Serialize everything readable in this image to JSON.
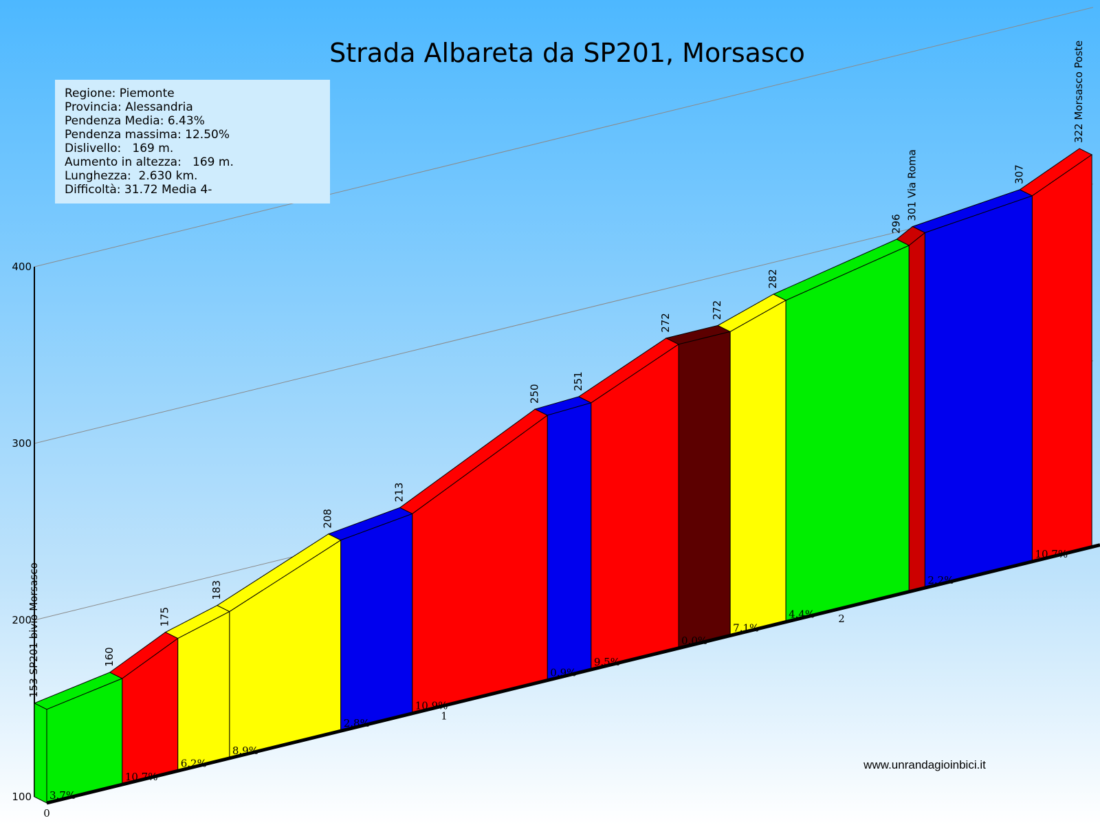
{
  "chart_data": {
    "type": "area",
    "title": "Strada Albareta da SP201, Morsasco",
    "xlabel": "",
    "ylabel": "",
    "ylim": [
      100,
      400
    ],
    "y_ticks": [
      "100",
      "200",
      "300",
      "400"
    ],
    "x_ticks": [
      "0",
      "1",
      "2"
    ],
    "grid": true,
    "profile": [
      {
        "x": 0.0,
        "elev": 153,
        "label": "153 SP201 bivio Morsasco"
      },
      {
        "x": 0.19,
        "elev": 160,
        "label": "160"
      },
      {
        "x": 0.33,
        "elev": 175,
        "label": "175"
      },
      {
        "x": 0.46,
        "elev": 183,
        "label": "183"
      },
      {
        "x": 0.74,
        "elev": 208,
        "label": "208"
      },
      {
        "x": 0.92,
        "elev": 213,
        "label": "213"
      },
      {
        "x": 1.26,
        "elev": 250,
        "label": "250"
      },
      {
        "x": 1.37,
        "elev": 251,
        "label": "251"
      },
      {
        "x": 1.59,
        "elev": 272,
        "label": "272"
      },
      {
        "x": 1.72,
        "elev": 272,
        "label": "272"
      },
      {
        "x": 1.86,
        "elev": 282,
        "label": "282"
      },
      {
        "x": 2.17,
        "elev": 296,
        "label": "296"
      },
      {
        "x": 2.21,
        "elev": 301,
        "label": "301 Via Roma"
      },
      {
        "x": 2.48,
        "elev": 307,
        "label": "307"
      },
      {
        "x": 2.63,
        "elev": 322,
        "label": "322 Morsasco Poste"
      }
    ],
    "segments": [
      {
        "gradient": "3.7%",
        "color": "#00ee00"
      },
      {
        "gradient": "10.7%",
        "color": "#ff0000"
      },
      {
        "gradient": "6.2%",
        "color": "#ffff00"
      },
      {
        "gradient": "8.9%",
        "color": "#ffff00"
      },
      {
        "gradient": "2.8%",
        "color": "#0000ee"
      },
      {
        "gradient": "10.9%",
        "color": "#ff0000"
      },
      {
        "gradient": "0.9%",
        "color": "#0000ee"
      },
      {
        "gradient": "9.5%",
        "color": "#ff0000"
      },
      {
        "gradient": "0.0%",
        "color": "#5c0000"
      },
      {
        "gradient": "7.1%",
        "color": "#ffff00"
      },
      {
        "gradient": "4.4%",
        "color": "#00ee00"
      },
      {
        "gradient": "",
        "color": "#cc0000"
      },
      {
        "gradient": "2.2%",
        "color": "#0000ee"
      },
      {
        "gradient": "10.7%",
        "color": "#ff0000"
      }
    ]
  },
  "info": {
    "regione": "Regione: Piemonte",
    "provincia": "Provincia: Alessandria",
    "pendenza_media": "Pendenza Media: 6.43%",
    "pendenza_massima": "Pendenza massima: 12.50%",
    "dislivello": "Dislivello:   169 m.",
    "aumento": "Aumento in altezza:   169 m.",
    "lunghezza": "Lunghezza:  2.630 km.",
    "difficolta": "Difficoltà: 31.72 Media 4-"
  },
  "website": "www.unrandagioinbici.it",
  "colors": {
    "sky_top": "#4db8ff",
    "sky_bottom": "#ffffff",
    "info_bg": "#cfecfd"
  }
}
